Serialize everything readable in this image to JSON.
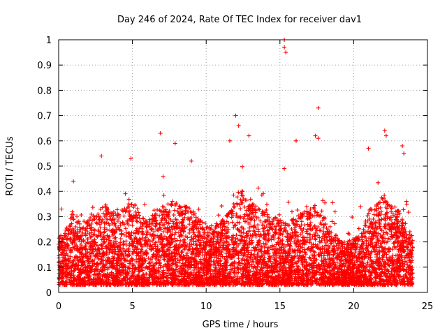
{
  "chart_data": {
    "type": "scatter",
    "title": "Day 246 of 2024, Rate Of TEC Index for receiver dav1",
    "xlabel": "GPS time / hours",
    "ylabel": "ROTI / TECUs",
    "xlim": [
      0,
      25
    ],
    "ylim": [
      0,
      1
    ],
    "xticks": [
      0,
      5,
      10,
      15,
      20,
      25
    ],
    "yticks": [
      0,
      0.1,
      0.2,
      0.3,
      0.4,
      0.5,
      0.6,
      0.7,
      0.8,
      0.9,
      1
    ],
    "x_tick_labels": [
      "0",
      "5",
      "10",
      "15",
      "20",
      "25"
    ],
    "y_tick_labels": [
      "0",
      "0.1",
      "0.2",
      "0.3",
      "0.4",
      "0.5",
      "0.6",
      "0.7",
      "0.8",
      "0.9",
      "1"
    ],
    "grid": true,
    "marker": "+",
    "color": "#ff0000",
    "data_range_hours": [
      0,
      24
    ],
    "baseline_band": [
      0.03,
      0.3
    ],
    "notable_points": [
      {
        "x": 0.2,
        "y": 0.33
      },
      {
        "x": 1.0,
        "y": 0.44
      },
      {
        "x": 2.9,
        "y": 0.54
      },
      {
        "x": 4.9,
        "y": 0.53
      },
      {
        "x": 6.9,
        "y": 0.63
      },
      {
        "x": 7.9,
        "y": 0.59
      },
      {
        "x": 9.0,
        "y": 0.52
      },
      {
        "x": 11.6,
        "y": 0.6
      },
      {
        "x": 12.0,
        "y": 0.7
      },
      {
        "x": 12.2,
        "y": 0.66
      },
      {
        "x": 12.9,
        "y": 0.62
      },
      {
        "x": 15.3,
        "y": 1.0
      },
      {
        "x": 15.3,
        "y": 0.97
      },
      {
        "x": 15.4,
        "y": 0.95
      },
      {
        "x": 15.3,
        "y": 0.49
      },
      {
        "x": 16.1,
        "y": 0.6
      },
      {
        "x": 17.4,
        "y": 0.62
      },
      {
        "x": 17.6,
        "y": 0.61
      },
      {
        "x": 17.6,
        "y": 0.73
      },
      {
        "x": 21.0,
        "y": 0.57
      },
      {
        "x": 22.1,
        "y": 0.64
      },
      {
        "x": 22.2,
        "y": 0.62
      },
      {
        "x": 23.3,
        "y": 0.58
      },
      {
        "x": 23.4,
        "y": 0.55
      }
    ]
  }
}
